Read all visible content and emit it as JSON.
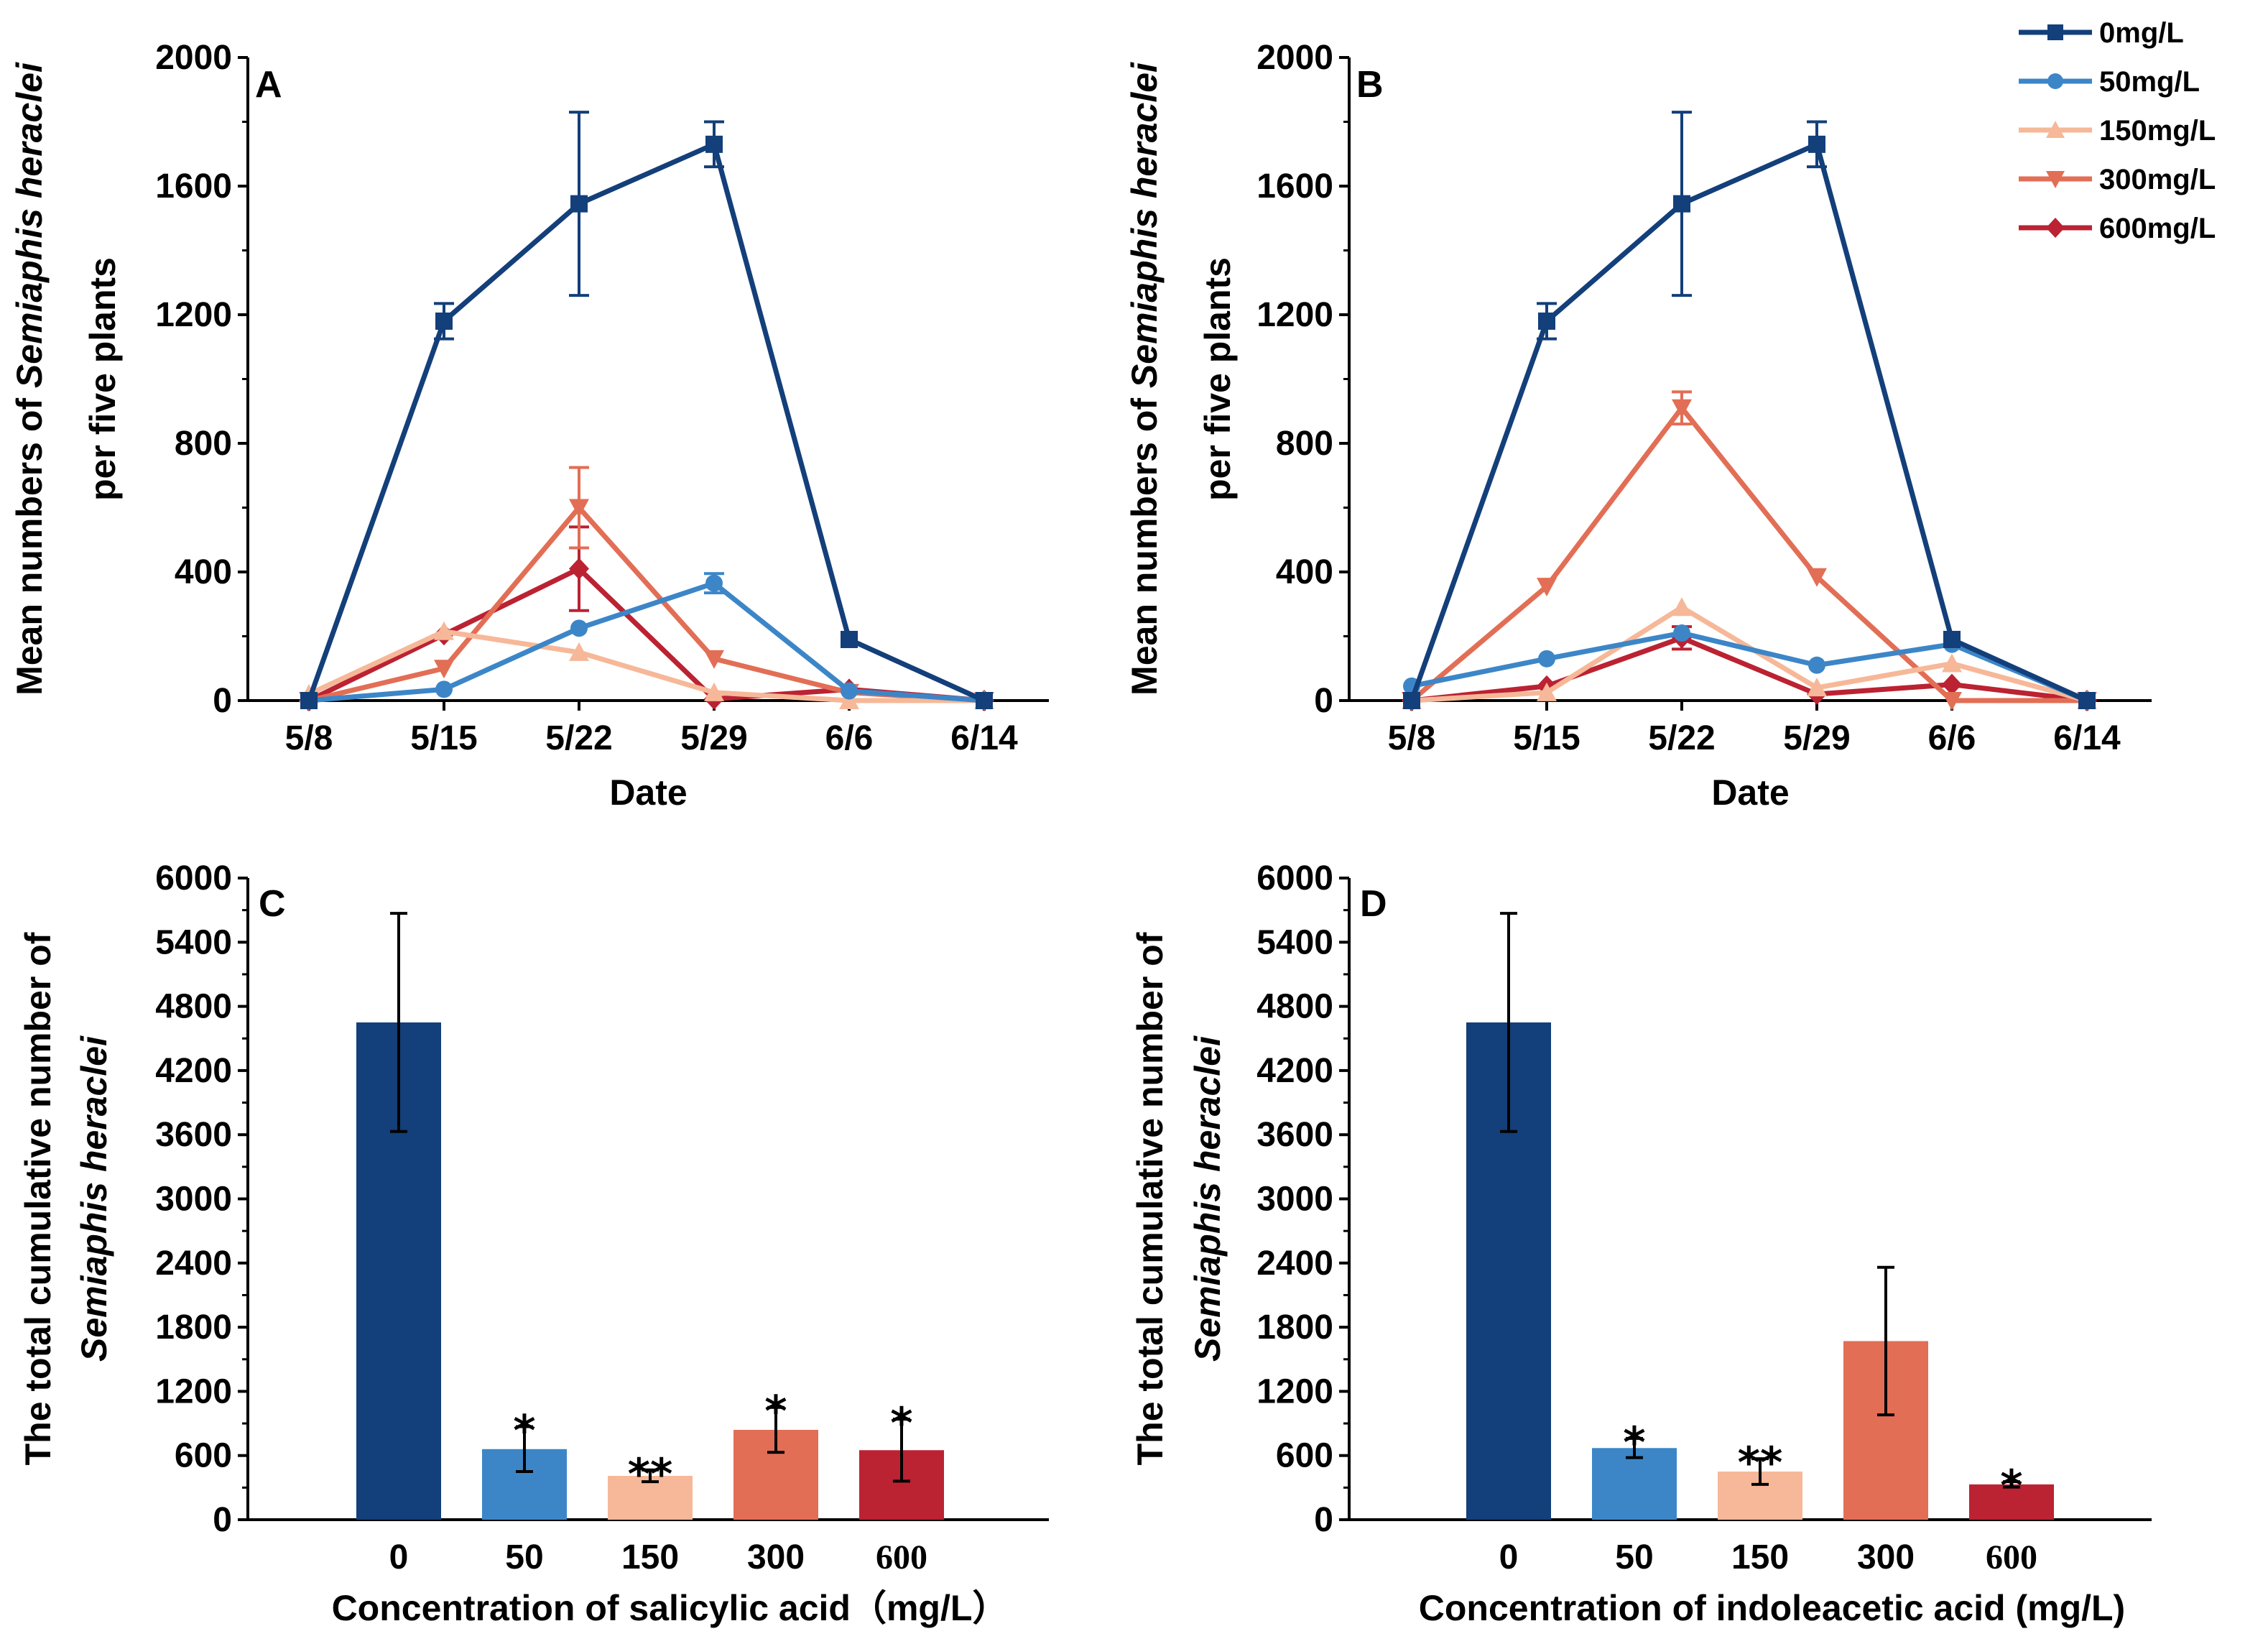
{
  "legend": {
    "entries": [
      {
        "label": "0mg/L",
        "color": "#133f7a",
        "marker": "square"
      },
      {
        "label": "50mg/L",
        "color": "#3c86c8",
        "marker": "circle"
      },
      {
        "label": "150mg/L",
        "color": "#f6b898",
        "marker": "triangle-up"
      },
      {
        "label": "300mg/L",
        "color": "#e26e55",
        "marker": "triangle-down"
      },
      {
        "label": "600mg/L",
        "color": "#bb2232",
        "marker": "diamond"
      }
    ]
  },
  "chart_data": [
    {
      "id": "A",
      "type": "line",
      "panel_label": "A",
      "xlabel": "Date",
      "ylabel_line1": "Mean numbers of ",
      "ylabel_italic": "Semiaphis heraclei",
      "ylabel_line2": "per five plants",
      "categories": [
        "5/8",
        "5/15",
        "5/22",
        "5/29",
        "6/6",
        "6/14"
      ],
      "yticks": [
        "0",
        "400",
        "800",
        "1200",
        "1600",
        "2000"
      ],
      "ylim": [
        0,
        2000
      ],
      "series": [
        {
          "name": "0mg/L",
          "values": [
            0,
            1180,
            1545,
            1730,
            190,
            0
          ],
          "errors": [
            0,
            55,
            285,
            70,
            0,
            0
          ]
        },
        {
          "name": "50mg/L",
          "values": [
            0,
            35,
            225,
            365,
            30,
            0
          ],
          "errors": [
            0,
            0,
            0,
            30,
            0,
            0
          ]
        },
        {
          "name": "150mg/L",
          "values": [
            20,
            215,
            150,
            25,
            0,
            0
          ],
          "errors": [
            0,
            0,
            0,
            0,
            0,
            0
          ]
        },
        {
          "name": "300mg/L",
          "values": [
            0,
            100,
            600,
            130,
            25,
            0
          ],
          "errors": [
            0,
            0,
            125,
            0,
            0,
            0
          ]
        },
        {
          "name": "600mg/L",
          "values": [
            0,
            205,
            410,
            5,
            35,
            0
          ],
          "errors": [
            0,
            0,
            130,
            0,
            0,
            0
          ]
        }
      ]
    },
    {
      "id": "B",
      "type": "line",
      "panel_label": "B",
      "xlabel": "Date",
      "ylabel_line1": "Mean numbers of ",
      "ylabel_italic": "Semiaphis heraclei",
      "ylabel_line2": "per five plants",
      "categories": [
        "5/8",
        "5/15",
        "5/22",
        "5/29",
        "6/6",
        "6/14"
      ],
      "yticks": [
        "0",
        "400",
        "800",
        "1200",
        "1600",
        "2000"
      ],
      "ylim": [
        0,
        2000
      ],
      "series": [
        {
          "name": "0mg/L",
          "values": [
            0,
            1180,
            1545,
            1730,
            190,
            0
          ],
          "errors": [
            0,
            55,
            285,
            70,
            0,
            0
          ]
        },
        {
          "name": "50mg/L",
          "values": [
            45,
            130,
            210,
            110,
            175,
            0
          ],
          "errors": [
            0,
            0,
            0,
            0,
            0,
            0
          ]
        },
        {
          "name": "150mg/L",
          "values": [
            0,
            25,
            290,
            40,
            115,
            0
          ],
          "errors": [
            0,
            0,
            0,
            0,
            0,
            0
          ]
        },
        {
          "name": "300mg/L",
          "values": [
            0,
            355,
            910,
            385,
            0,
            0
          ],
          "errors": [
            0,
            0,
            50,
            0,
            0,
            0
          ]
        },
        {
          "name": "600mg/L",
          "values": [
            0,
            45,
            195,
            20,
            50,
            0
          ],
          "errors": [
            0,
            0,
            35,
            0,
            0,
            0
          ]
        }
      ]
    },
    {
      "id": "C",
      "type": "bar",
      "panel_label": "C",
      "xlabel": "Concentration of salicylic acid（mg/L）",
      "ylabel_line1": "The total cumulative number of",
      "ylabel_italic": "Semiaphis heraclei",
      "categories": [
        "0",
        "50",
        "150",
        "300",
        "600"
      ],
      "yticks": [
        "0",
        "600",
        "1200",
        "1800",
        "2400",
        "3000",
        "3600",
        "4200",
        "4800",
        "5400",
        "6000"
      ],
      "ylim": [
        0,
        6000
      ],
      "values": [
        4650,
        660,
        410,
        840,
        650
      ],
      "errors": [
        1020,
        210,
        55,
        210,
        290
      ],
      "significance": [
        "",
        "*",
        "**",
        "*",
        "*"
      ]
    },
    {
      "id": "D",
      "type": "bar",
      "panel_label": "D",
      "xlabel": "Concentration of indoleacetic acid (mg/L)",
      "ylabel_line1": "The total cumulative number of",
      "ylabel_italic": "Semiaphis heraclei",
      "categories": [
        "0",
        "50",
        "150",
        "300",
        "600"
      ],
      "yticks": [
        "0",
        "600",
        "1200",
        "1800",
        "2400",
        "3000",
        "3600",
        "4200",
        "4800",
        "5400",
        "6000"
      ],
      "ylim": [
        0,
        6000
      ],
      "values": [
        4650,
        670,
        450,
        1670,
        330
      ],
      "errors": [
        1020,
        90,
        120,
        690,
        25
      ],
      "significance": [
        "",
        "*",
        "**",
        "",
        "*"
      ]
    }
  ],
  "colors": {
    "0mg/L": "#133f7a",
    "50mg/L": "#3c86c8",
    "150mg/L": "#f6b898",
    "300mg/L": "#e26e55",
    "600mg/L": "#bb2232"
  }
}
